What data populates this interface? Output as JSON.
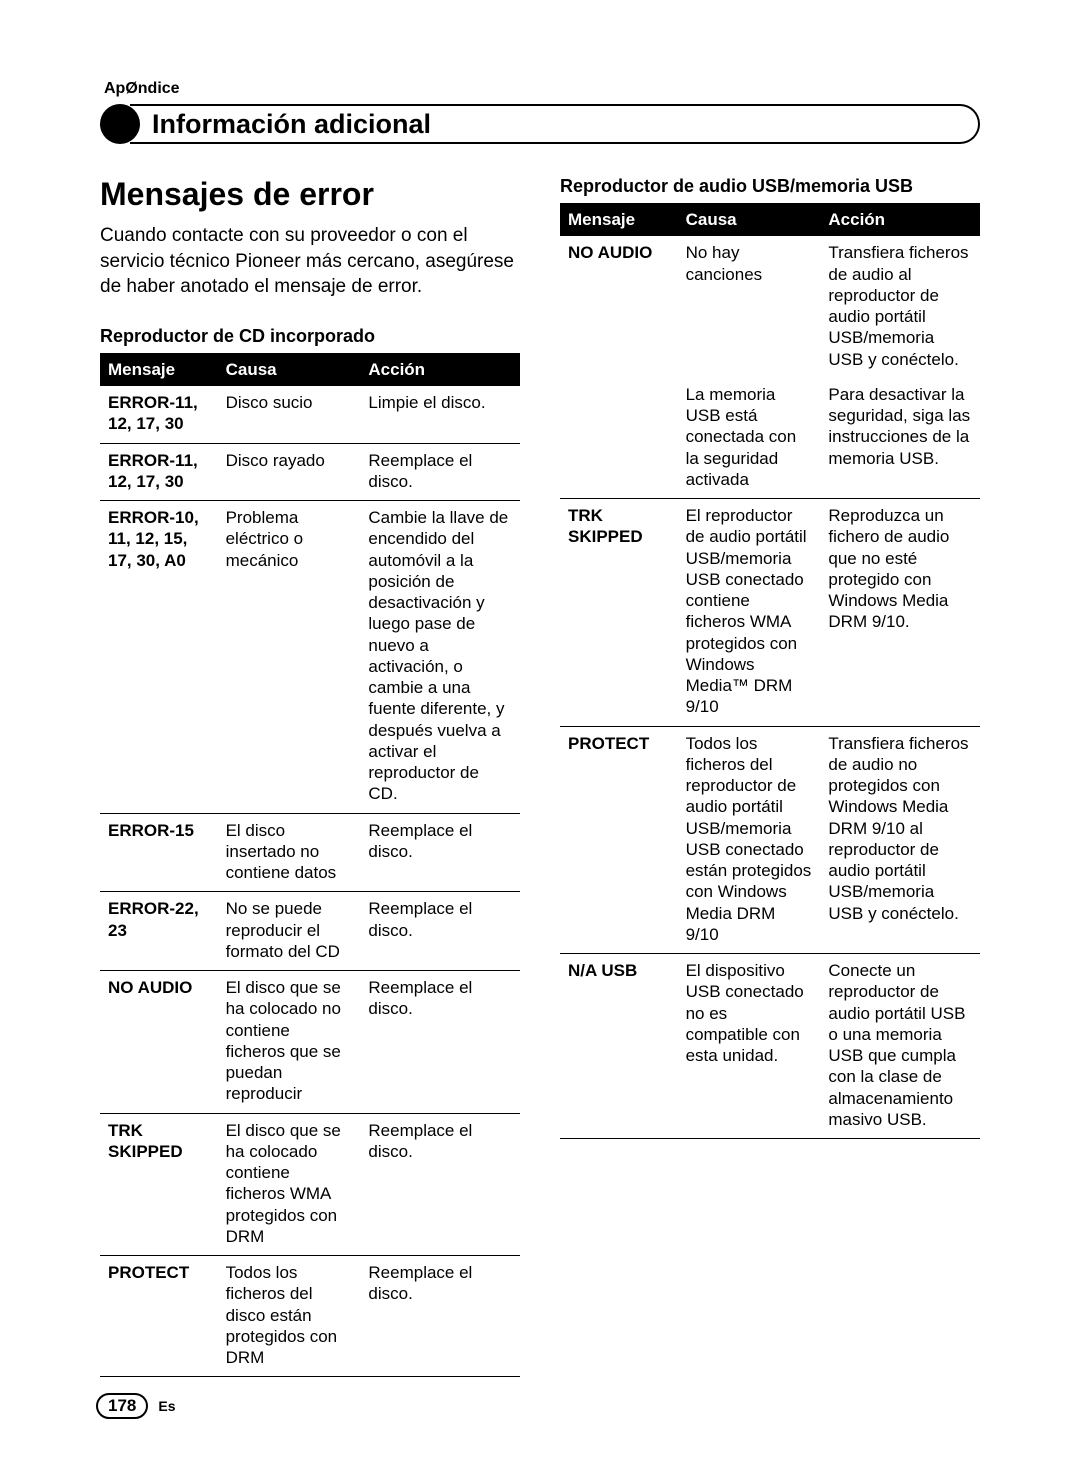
{
  "page": {
    "appendix_label": "ApØndice",
    "header_title": "Información adicional",
    "number": "178",
    "lang": "Es"
  },
  "left": {
    "section_title": "Mensajes de error",
    "intro": "Cuando contacte con su proveedor o con el servicio técnico Pioneer más cercano, asegúrese de haber anotado el mensaje de error.",
    "table_caption": "Reproductor de CD incorporado",
    "headers": {
      "c1": "Mensaje",
      "c2": "Causa",
      "c3": "Acción"
    },
    "rows": [
      {
        "msg": "ERROR-11, 12, 17, 30",
        "cause": "Disco sucio",
        "action": "Limpie el disco."
      },
      {
        "msg": "ERROR-11, 12, 17, 30",
        "cause": "Disco rayado",
        "action": "Reemplace el disco."
      },
      {
        "msg": "ERROR-10, 11, 12, 15, 17, 30, A0",
        "cause": "Problema eléctrico o mecánico",
        "action": "Cambie la llave de encendido del automóvil a la posición de desactivación y luego pase de nuevo a activación, o cambie a una fuente diferente, y después vuelva a activar el reproductor de CD."
      },
      {
        "msg": "ERROR-15",
        "cause": "El disco insertado no contiene datos",
        "action": "Reemplace el disco."
      },
      {
        "msg": "ERROR-22, 23",
        "cause": "No se puede reproducir el formato del CD",
        "action": "Reemplace el disco."
      },
      {
        "msg": "NO AUDIO",
        "cause": "El disco que se ha colocado no contiene ficheros que se puedan reproducir",
        "action": "Reemplace el disco."
      },
      {
        "msg": "TRK SKIPPED",
        "cause": "El disco que se ha colocado contiene ficheros WMA protegidos con DRM",
        "action": "Reemplace el disco."
      },
      {
        "msg": "PROTECT",
        "cause": "Todos los ficheros del disco están protegidos con DRM",
        "action": "Reemplace el disco."
      }
    ]
  },
  "right": {
    "table_caption": "Reproductor de audio USB/memoria USB",
    "headers": {
      "c1": "Mensaje",
      "c2": "Causa",
      "c3": "Acción"
    },
    "rows": [
      {
        "msg": "NO AUDIO",
        "cause": "No hay canciones",
        "action": "Transfiera ficheros de audio al reproductor de audio portátil USB/memoria USB y conéctelo.",
        "nobottom": true
      },
      {
        "msg": "",
        "cause": "La memoria USB está conectada con la seguridad activada",
        "action": "Para desactivar la seguridad, siga las instrucciones de la memoria USB."
      },
      {
        "msg": "TRK SKIPPED",
        "cause": "El reproductor de audio portátil USB/memoria USB conectado contiene ficheros WMA protegidos con Windows Media™ DRM 9/10",
        "action": "Reproduzca un fichero de audio que no esté protegido con Windows Media DRM 9/10."
      },
      {
        "msg": "PROTECT",
        "cause": "Todos los ficheros del reproductor de audio portátil USB/memoria USB conectado están protegidos con Windows Media DRM 9/10",
        "action": "Transfiera ficheros de audio no protegidos con Windows Media DRM 9/10 al reproductor de audio portátil USB/memoria USB y conéctelo."
      },
      {
        "msg": "N/A USB",
        "cause": "El dispositivo USB conectado no es compatible con esta unidad.",
        "action": "Conecte un reproductor de audio portátil USB o una memoria USB que cumpla con la clase de almacenamiento masivo USB."
      }
    ]
  }
}
